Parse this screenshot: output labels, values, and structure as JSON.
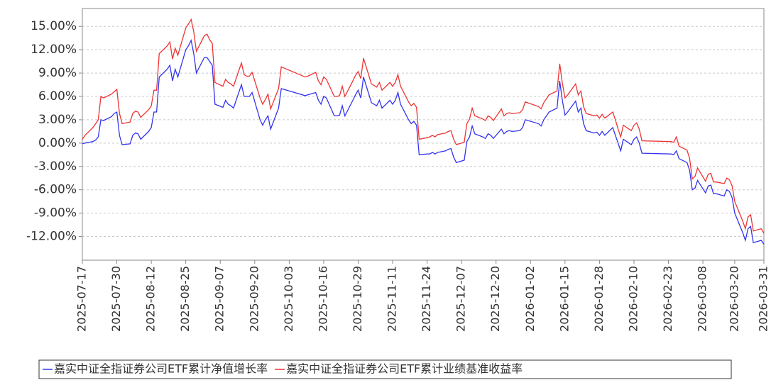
{
  "chart_data": {
    "type": "line",
    "x": [
      "2025-07-17",
      "2025-07-18",
      "2025-07-21",
      "2025-07-22",
      "2025-07-23",
      "2025-07-24",
      "2025-07-25",
      "2025-07-28",
      "2025-07-29",
      "2025-07-30",
      "2025-07-31",
      "2025-08-01",
      "2025-08-04",
      "2025-08-05",
      "2025-08-06",
      "2025-08-07",
      "2025-08-08",
      "2025-08-11",
      "2025-08-12",
      "2025-08-13",
      "2025-08-14",
      "2025-08-15",
      "2025-08-18",
      "2025-08-19",
      "2025-08-20",
      "2025-08-21",
      "2025-08-22",
      "2025-08-25",
      "2025-08-26",
      "2025-08-27",
      "2025-08-28",
      "2025-08-29",
      "2025-09-01",
      "2025-09-02",
      "2025-09-03",
      "2025-09-04",
      "2025-09-05",
      "2025-09-08",
      "2025-09-09",
      "2025-09-10",
      "2025-09-11",
      "2025-09-12",
      "2025-09-15",
      "2025-09-16",
      "2025-09-17",
      "2025-09-18",
      "2025-09-19",
      "2025-09-22",
      "2025-09-23",
      "2025-09-24",
      "2025-09-25",
      "2025-09-26",
      "2025-09-29",
      "2025-09-30",
      "2025-10-09",
      "2025-10-10",
      "2025-10-13",
      "2025-10-14",
      "2025-10-15",
      "2025-10-16",
      "2025-10-17",
      "2025-10-20",
      "2025-10-21",
      "2025-10-22",
      "2025-10-23",
      "2025-10-24",
      "2025-10-27",
      "2025-10-28",
      "2025-10-29",
      "2025-10-30",
      "2025-10-31",
      "2025-11-03",
      "2025-11-04",
      "2025-11-05",
      "2025-11-06",
      "2025-11-07",
      "2025-11-10",
      "2025-11-11",
      "2025-11-12",
      "2025-11-13",
      "2025-11-14",
      "2025-11-17",
      "2025-11-18",
      "2025-11-19",
      "2025-11-20",
      "2025-11-21",
      "2025-11-24",
      "2025-11-25",
      "2025-11-26",
      "2025-11-27",
      "2025-11-28",
      "2025-12-01",
      "2025-12-02",
      "2025-12-03",
      "2025-12-04",
      "2025-12-05",
      "2025-12-08",
      "2025-12-09",
      "2025-12-10",
      "2025-12-11",
      "2025-12-12",
      "2025-12-15",
      "2025-12-16",
      "2025-12-17",
      "2025-12-18",
      "2025-12-19",
      "2025-12-22",
      "2025-12-23",
      "2025-12-24",
      "2025-12-25",
      "2025-12-26",
      "2025-12-29",
      "2025-12-30",
      "2025-12-31",
      "2026-01-05",
      "2026-01-06",
      "2026-01-07",
      "2026-01-08",
      "2026-01-09",
      "2026-01-12",
      "2026-01-13",
      "2026-01-14",
      "2026-01-15",
      "2026-01-16",
      "2026-01-19",
      "2026-01-20",
      "2026-01-21",
      "2026-01-22",
      "2026-01-23",
      "2026-01-26",
      "2026-01-27",
      "2026-01-28",
      "2026-01-29",
      "2026-01-30",
      "2026-02-02",
      "2026-02-03",
      "2026-02-04",
      "2026-02-05",
      "2026-02-06",
      "2026-02-09",
      "2026-02-10",
      "2026-02-11",
      "2026-02-12",
      "2026-02-13",
      "2026-02-24",
      "2026-02-25",
      "2026-02-26",
      "2026-02-27",
      "2026-03-02",
      "2026-03-03",
      "2026-03-04",
      "2026-03-05",
      "2026-03-06",
      "2026-03-09",
      "2026-03-10",
      "2026-03-11",
      "2026-03-12",
      "2026-03-13",
      "2026-03-16",
      "2026-03-17",
      "2026-03-18",
      "2026-03-19",
      "2026-03-20",
      "2026-03-23",
      "2026-03-24",
      "2026-03-25",
      "2026-03-26",
      "2026-03-27",
      "2026-03-30",
      "2026-03-31"
    ],
    "series": [
      {
        "name": "嘉实中证全指证券公司ETF累计净值增长率",
        "color": "#3333ee",
        "values": [
          -0.1,
          0.0,
          0.2,
          0.4,
          0.8,
          3.0,
          2.9,
          3.4,
          3.8,
          4.0,
          1.0,
          -0.2,
          -0.1,
          1.0,
          1.3,
          1.2,
          0.5,
          1.5,
          2.0,
          4.0,
          4.0,
          8.5,
          9.5,
          10.0,
          8.0,
          9.5,
          8.5,
          12.0,
          12.5,
          13.2,
          11.5,
          9.0,
          11.0,
          11.0,
          10.5,
          10.0,
          5.0,
          4.6,
          5.5,
          5.0,
          4.8,
          4.5,
          7.5,
          6.0,
          6.0,
          6.0,
          6.5,
          3.0,
          2.3,
          3.0,
          3.5,
          1.8,
          4.5,
          7.0,
          6.1,
          6.2,
          6.5,
          5.5,
          5.0,
          6.0,
          5.8,
          3.5,
          3.5,
          3.6,
          4.8,
          3.5,
          5.5,
          6.2,
          6.8,
          5.8,
          8.5,
          5.2,
          5.0,
          4.8,
          5.5,
          4.5,
          5.5,
          5.0,
          5.5,
          6.5,
          5.0,
          3.0,
          2.5,
          2.8,
          2.3,
          -1.5,
          -1.4,
          -1.4,
          -1.2,
          -1.4,
          -1.2,
          -1.0,
          -0.8,
          -0.7,
          -1.8,
          -2.5,
          -2.2,
          0.2,
          0.8,
          2.2,
          1.2,
          0.8,
          0.6,
          1.2,
          1.0,
          0.6,
          1.8,
          1.2,
          1.5,
          1.6,
          1.5,
          1.6,
          2.0,
          3.0,
          2.5,
          2.2,
          3.0,
          3.5,
          4.0,
          4.5,
          8.0,
          5.5,
          3.6,
          4.0,
          5.4,
          4.0,
          4.5,
          2.5,
          1.6,
          1.3,
          1.4,
          1.0,
          1.5,
          1.0,
          2.0,
          1.0,
          0.0,
          -1.0,
          0.5,
          -0.2,
          0.5,
          0.8,
          0.0,
          -1.3,
          -1.4,
          -1.5,
          -1.0,
          -2.0,
          -2.5,
          -3.5,
          -6.0,
          -5.8,
          -4.8,
          -6.4,
          -5.5,
          -5.4,
          -6.5,
          -6.5,
          -6.8,
          -6.0,
          -6.2,
          -7.0,
          -9.0,
          -11.5,
          -12.5,
          -11.0,
          -10.7,
          -12.8,
          -12.5,
          -13.0
        ]
      },
      {
        "name": "嘉实中证全指证券公司ETF累计业绩基准收益率",
        "color": "#ee3333",
        "values": [
          0.5,
          1.0,
          2.0,
          2.5,
          3.0,
          6.0,
          5.8,
          6.3,
          6.6,
          6.9,
          3.8,
          2.5,
          2.7,
          3.8,
          4.1,
          4.0,
          3.3,
          4.3,
          4.8,
          6.8,
          6.8,
          11.5,
          12.5,
          13.0,
          10.8,
          12.2,
          11.3,
          14.8,
          15.3,
          15.9,
          14.3,
          11.8,
          13.8,
          14.0,
          13.3,
          12.8,
          7.8,
          7.3,
          8.2,
          7.8,
          7.6,
          7.3,
          10.3,
          8.8,
          8.6,
          8.6,
          9.1,
          5.8,
          5.0,
          5.6,
          6.3,
          4.4,
          7.0,
          9.8,
          8.5,
          8.6,
          9.1,
          8.0,
          7.5,
          8.5,
          8.2,
          6.0,
          6.0,
          6.1,
          7.3,
          6.0,
          8.0,
          8.7,
          9.2,
          8.3,
          10.9,
          7.6,
          7.4,
          7.2,
          7.8,
          6.8,
          7.8,
          7.3,
          7.8,
          8.8,
          7.3,
          5.3,
          4.8,
          5.1,
          4.6,
          0.5,
          0.7,
          0.8,
          1.0,
          0.8,
          1.1,
          1.3,
          1.5,
          1.6,
          0.5,
          -0.2,
          0.1,
          2.5,
          3.1,
          4.5,
          3.5,
          3.1,
          2.9,
          3.5,
          3.3,
          2.9,
          4.4,
          3.5,
          3.8,
          3.9,
          3.8,
          3.9,
          4.3,
          5.3,
          4.7,
          4.4,
          5.2,
          5.7,
          6.2,
          6.7,
          10.2,
          7.7,
          5.8,
          6.2,
          7.6,
          6.2,
          6.7,
          4.7,
          3.8,
          3.5,
          3.6,
          3.2,
          3.7,
          3.2,
          4.0,
          3.0,
          1.8,
          0.8,
          2.3,
          1.6,
          2.3,
          2.6,
          1.8,
          0.3,
          0.2,
          0.1,
          0.8,
          -0.4,
          -0.9,
          -2.0,
          -4.6,
          -4.3,
          -3.2,
          -4.9,
          -4.0,
          -3.9,
          -5.0,
          -5.0,
          -5.2,
          -4.5,
          -4.7,
          -5.5,
          -7.5,
          -10.0,
          -11.0,
          -9.5,
          -9.2,
          -11.3,
          -11.0,
          -11.6
        ]
      }
    ],
    "xlim": [
      "2025-07-17",
      "2026-03-31"
    ],
    "xticks": [
      "2025-07-17",
      "2025-07-30",
      "2025-08-12",
      "2025-08-25",
      "2025-09-07",
      "2025-09-20",
      "2025-10-03",
      "2025-10-16",
      "2025-10-29",
      "2025-11-11",
      "2025-11-24",
      "2025-12-07",
      "2025-12-20",
      "2026-01-02",
      "2026-01-15",
      "2026-01-28",
      "2026-02-10",
      "2026-02-23",
      "2026-03-08",
      "2026-03-20",
      "2026-03-31"
    ],
    "ylim": [
      -15.05,
      17.3
    ],
    "yticks": [
      {
        "value": -12,
        "label": "-12.00%"
      },
      {
        "value": -9,
        "label": "-9.00%"
      },
      {
        "value": -6,
        "label": "-6.00%"
      },
      {
        "value": -3,
        "label": "-3.00%"
      },
      {
        "value": 0,
        "label": "0.00%"
      },
      {
        "value": 3,
        "label": "3.00%"
      },
      {
        "value": 6,
        "label": "6.00%"
      },
      {
        "value": 9,
        "label": "9.00%"
      },
      {
        "value": 12,
        "label": "12.00%"
      },
      {
        "value": 15,
        "label": "15.00%"
      }
    ],
    "grid": true,
    "legend": "bottom"
  }
}
